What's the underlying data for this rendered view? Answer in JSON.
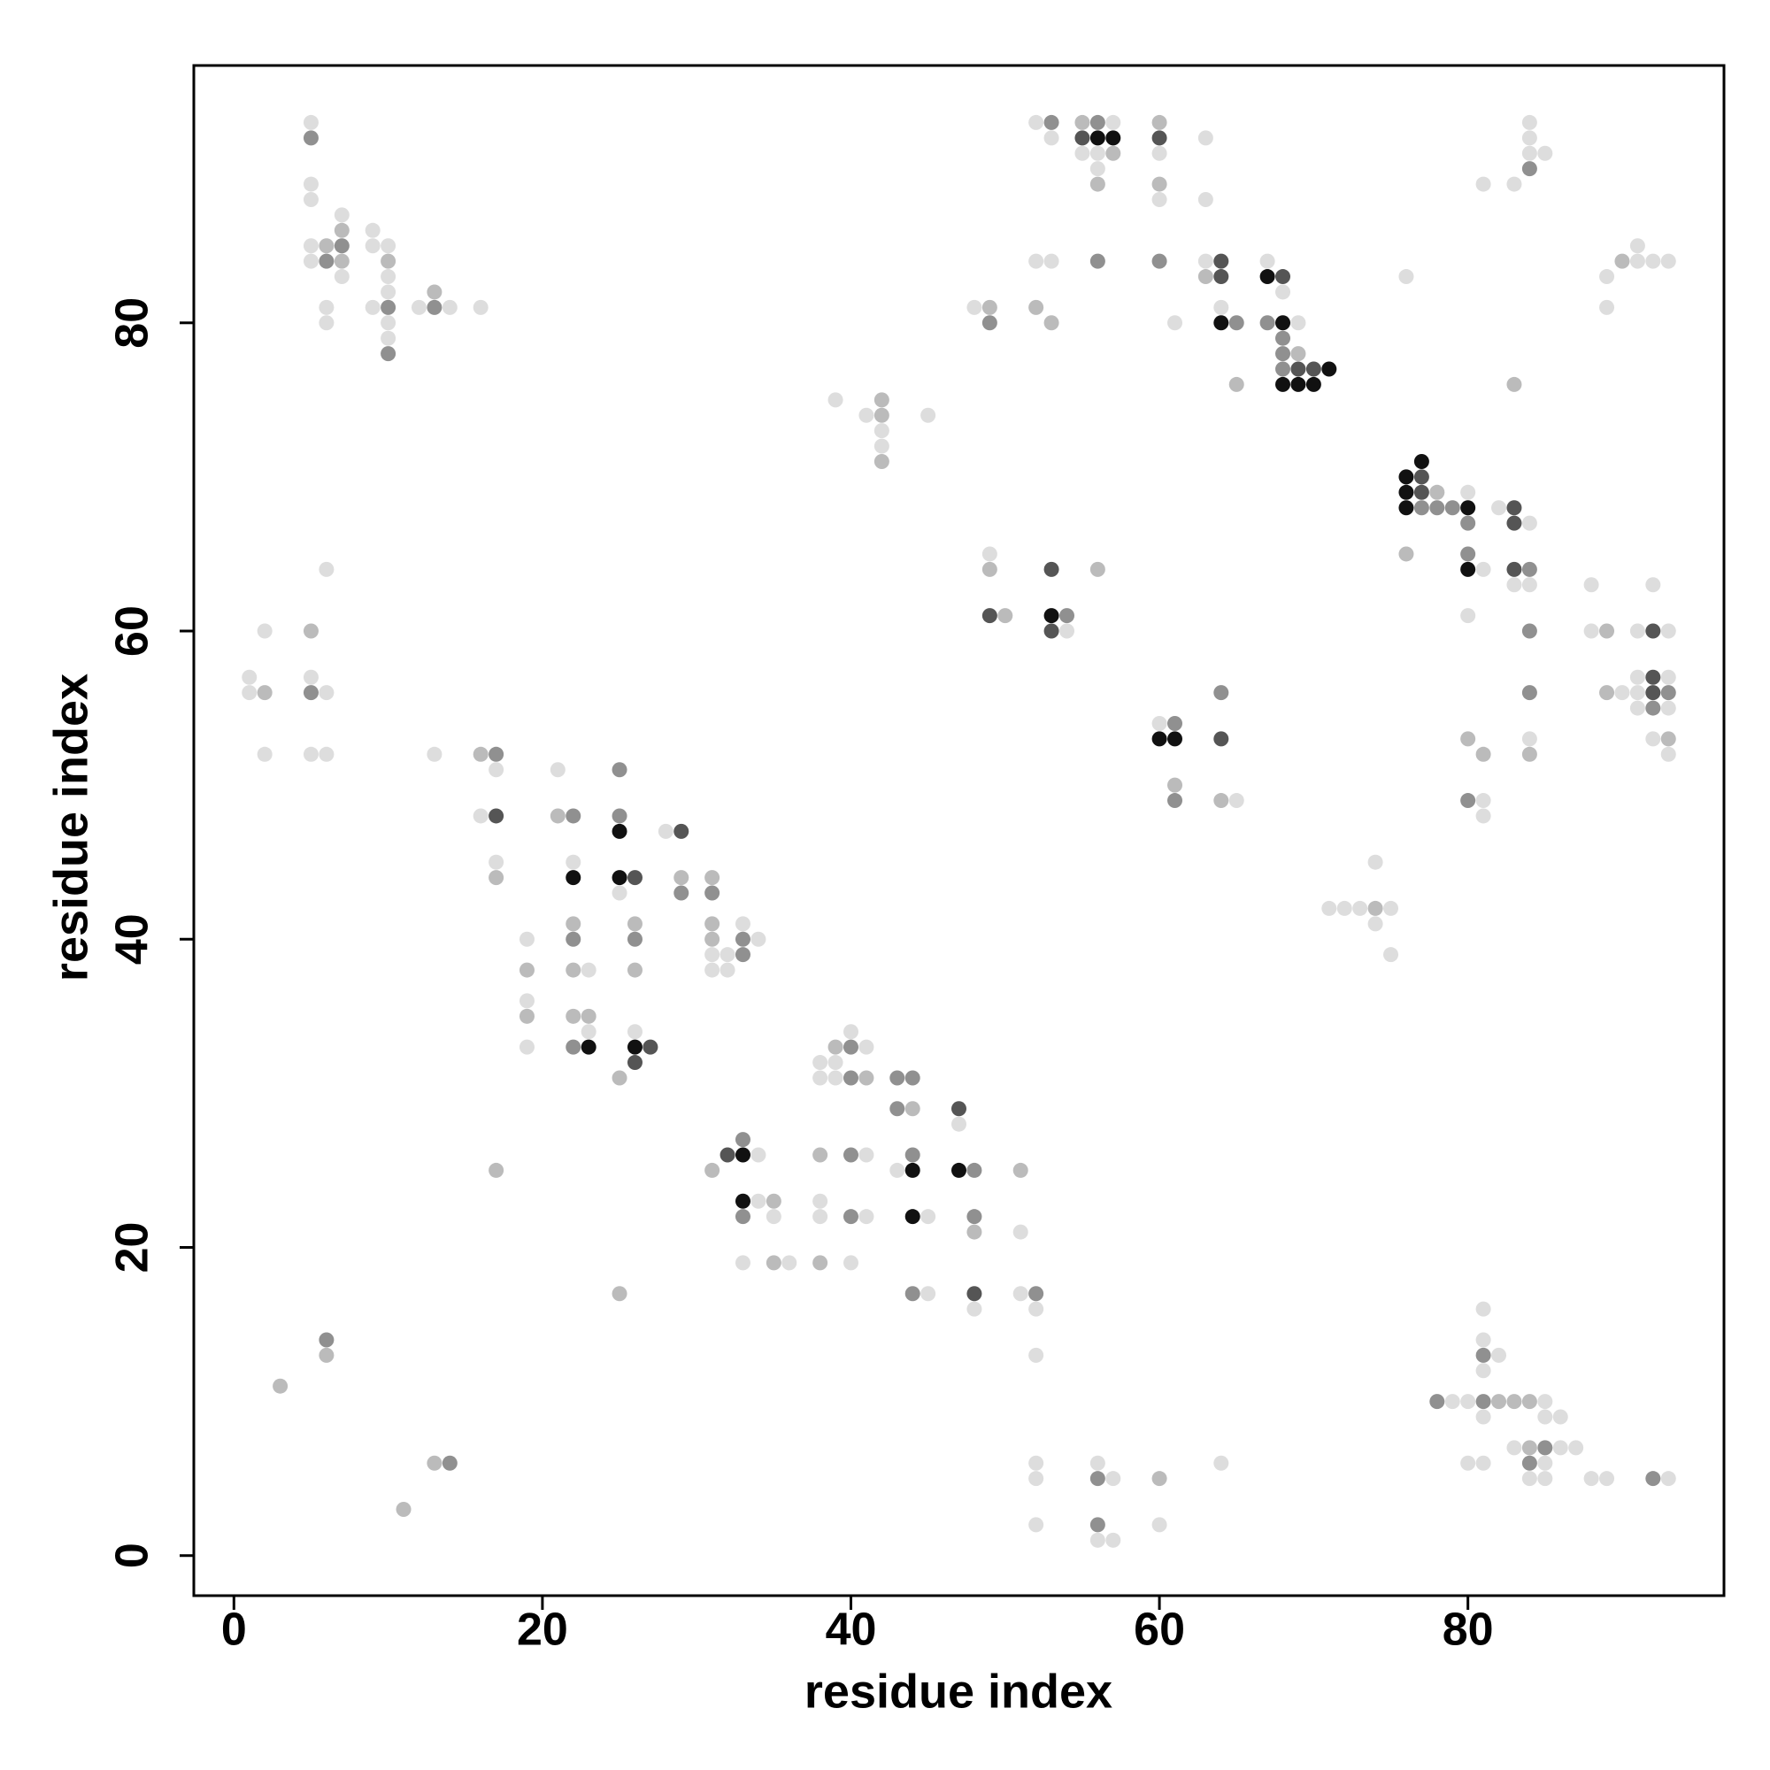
{
  "chart_data": {
    "type": "scatter",
    "xlabel": "residue index",
    "ylabel": "residue index",
    "xlim": [
      -2.6,
      96.6
    ],
    "ylim": [
      -2.6,
      96.7
    ],
    "xticks": [
      0,
      20,
      40,
      60,
      80
    ],
    "yticks": [
      0,
      20,
      40,
      60,
      80
    ],
    "series": [
      {
        "color": "#dddddd",
        "x": [
          5,
          5,
          5,
          5,
          5,
          6,
          6,
          7,
          7,
          9,
          9,
          9,
          10,
          10,
          10,
          10,
          10,
          12,
          14,
          16,
          1,
          1,
          2,
          2,
          5,
          5,
          6,
          6,
          6,
          13,
          17,
          16,
          17,
          19,
          19,
          19,
          21,
          22,
          23,
          23,
          25,
          26,
          28,
          31,
          32,
          31,
          32,
          33,
          34,
          34,
          34,
          35,
          33,
          36,
          38,
          38,
          40,
          38,
          39,
          38,
          39,
          40,
          41,
          41,
          41,
          43,
          45,
          45,
          47,
          48,
          51,
          51,
          52,
          52,
          52,
          52,
          52,
          56,
          57,
          56,
          57,
          60,
          64,
          79,
          80,
          81,
          81,
          82,
          81,
          85,
          81,
          85,
          86,
          80,
          81,
          83,
          86,
          85,
          84,
          85,
          87,
          88,
          89,
          93,
          39,
          41,
          42,
          42,
          45,
          48,
          52,
          53,
          52,
          53,
          57,
          55,
          56,
          56,
          60,
          60,
          63,
          63,
          61,
          63,
          64,
          67,
          68,
          69,
          76,
          49,
          54,
          60,
          65,
          71,
          72,
          73,
          75,
          74,
          74,
          75,
          80,
          81,
          80,
          82,
          84,
          83,
          84,
          84,
          81,
          81,
          81,
          83,
          84,
          84,
          84,
          85,
          89,
          89,
          91,
          91,
          92,
          93,
          88,
          88,
          90,
          91,
          91,
          91,
          91,
          92,
          93,
          93,
          93,
          92,
          93
        ],
        "values": [
          93,
          89,
          88,
          85,
          84,
          81,
          80,
          87,
          83,
          86,
          85,
          81,
          85,
          83,
          82,
          80,
          79,
          81,
          81,
          81,
          57,
          56,
          60,
          52,
          57,
          52,
          64,
          56,
          52,
          52,
          51,
          48,
          45,
          40,
          36,
          33,
          51,
          45,
          38,
          34,
          43,
          34,
          47,
          39,
          39,
          38,
          38,
          41,
          40,
          26,
          23,
          22,
          19,
          19,
          23,
          22,
          19,
          32,
          32,
          31,
          31,
          34,
          33,
          26,
          22,
          25,
          22,
          17,
          28,
          16,
          21,
          17,
          16,
          13,
          6,
          5,
          2,
          6,
          5,
          1,
          1,
          2,
          6,
          10,
          10,
          16,
          14,
          13,
          12,
          10,
          9,
          9,
          9,
          6,
          6,
          7,
          7,
          6,
          5,
          5,
          7,
          5,
          5,
          5,
          75,
          74,
          73,
          72,
          74,
          81,
          84,
          84,
          93,
          92,
          93,
          91,
          91,
          90,
          91,
          88,
          92,
          88,
          80,
          84,
          81,
          84,
          82,
          80,
          83,
          65,
          60,
          54,
          49,
          42,
          42,
          42,
          42,
          41,
          45,
          39,
          69,
          64,
          61,
          68,
          67,
          63,
          63,
          53,
          49,
          48,
          89,
          89,
          93,
          92,
          91,
          91,
          83,
          81,
          85,
          84,
          84,
          84,
          63,
          60,
          56,
          60,
          57,
          56,
          55,
          63,
          60,
          57,
          55,
          53,
          52
        ]
      },
      {
        "color": "#bbbbbb",
        "x": [
          6,
          7,
          7,
          10,
          13,
          2,
          5,
          16,
          17,
          19,
          19,
          21,
          22,
          22,
          22,
          23,
          26,
          26,
          25,
          29,
          31,
          31,
          31,
          17,
          25,
          31,
          35,
          35,
          38,
          38,
          39,
          41,
          44,
          48,
          51,
          6,
          3,
          11,
          13,
          60,
          82,
          83,
          84,
          84,
          42,
          42,
          42,
          49,
          52,
          53,
          55,
          60,
          60,
          57,
          56,
          63,
          65,
          69,
          83,
          49,
          50,
          56,
          61,
          64,
          74,
          78,
          76,
          84,
          80,
          81,
          90,
          89,
          89,
          93
        ],
        "values": [
          85,
          86,
          84,
          84,
          82,
          56,
          60,
          52,
          44,
          38,
          35,
          48,
          41,
          38,
          35,
          35,
          41,
          38,
          31,
          44,
          44,
          41,
          40,
          25,
          17,
          25,
          23,
          19,
          26,
          19,
          33,
          31,
          29,
          21,
          25,
          13,
          11,
          3,
          6,
          5,
          10,
          10,
          10,
          7,
          75,
          74,
          71,
          81,
          81,
          80,
          93,
          93,
          89,
          91,
          89,
          83,
          76,
          78,
          76,
          64,
          61,
          64,
          50,
          49,
          42,
          69,
          65,
          52,
          53,
          52,
          84,
          60,
          56,
          53
        ]
      },
      {
        "color": "#909090",
        "x": [
          5,
          6,
          7,
          10,
          10,
          13,
          5,
          17,
          22,
          22,
          22,
          25,
          25,
          26,
          29,
          31,
          33,
          33,
          33,
          33,
          40,
          40,
          40,
          40,
          43,
          44,
          43,
          44,
          44,
          48,
          48,
          52,
          6,
          14,
          56,
          56,
          78,
          81,
          81,
          85,
          84,
          92,
          49,
          53,
          56,
          56,
          60,
          84,
          65,
          67,
          68,
          68,
          68,
          54,
          61,
          61,
          64,
          77,
          78,
          79,
          80,
          80,
          84,
          84,
          84,
          80,
          93,
          92
        ],
        "values": [
          92,
          84,
          85,
          81,
          78,
          81,
          56,
          52,
          48,
          40,
          33,
          51,
          48,
          40,
          43,
          43,
          40,
          39,
          27,
          22,
          33,
          31,
          26,
          22,
          31,
          31,
          29,
          26,
          17,
          25,
          22,
          17,
          14,
          6,
          5,
          2,
          10,
          13,
          10,
          7,
          6,
          5,
          80,
          93,
          93,
          84,
          84,
          90,
          80,
          80,
          79,
          78,
          77,
          61,
          54,
          49,
          56,
          68,
          68,
          68,
          67,
          65,
          64,
          60,
          56,
          49,
          56,
          55
        ]
      },
      {
        "color": "#555555",
        "x": [
          17,
          26,
          27,
          26,
          29,
          32,
          47,
          48,
          55,
          60,
          64,
          64,
          68,
          69,
          70,
          49,
          53,
          53,
          64,
          77,
          77,
          83,
          83,
          83,
          92,
          92,
          92
        ],
        "values": [
          48,
          44,
          33,
          32,
          47,
          26,
          29,
          17,
          92,
          92,
          84,
          83,
          83,
          77,
          77,
          61,
          64,
          60,
          53,
          70,
          69,
          68,
          67,
          64,
          60,
          57,
          56
        ]
      },
      {
        "color": "#111111",
        "x": [
          22,
          23,
          25,
          25,
          26,
          33,
          33,
          44,
          44,
          47,
          56,
          57,
          64,
          67,
          68,
          71,
          68,
          69,
          70,
          53,
          60,
          61,
          76,
          77,
          76,
          76,
          80,
          80
        ],
        "values": [
          44,
          33,
          47,
          44,
          33,
          26,
          23,
          25,
          22,
          25,
          92,
          92,
          80,
          83,
          80,
          77,
          76,
          76,
          76,
          61,
          53,
          53,
          70,
          71,
          69,
          68,
          68,
          64
        ]
      }
    ]
  }
}
